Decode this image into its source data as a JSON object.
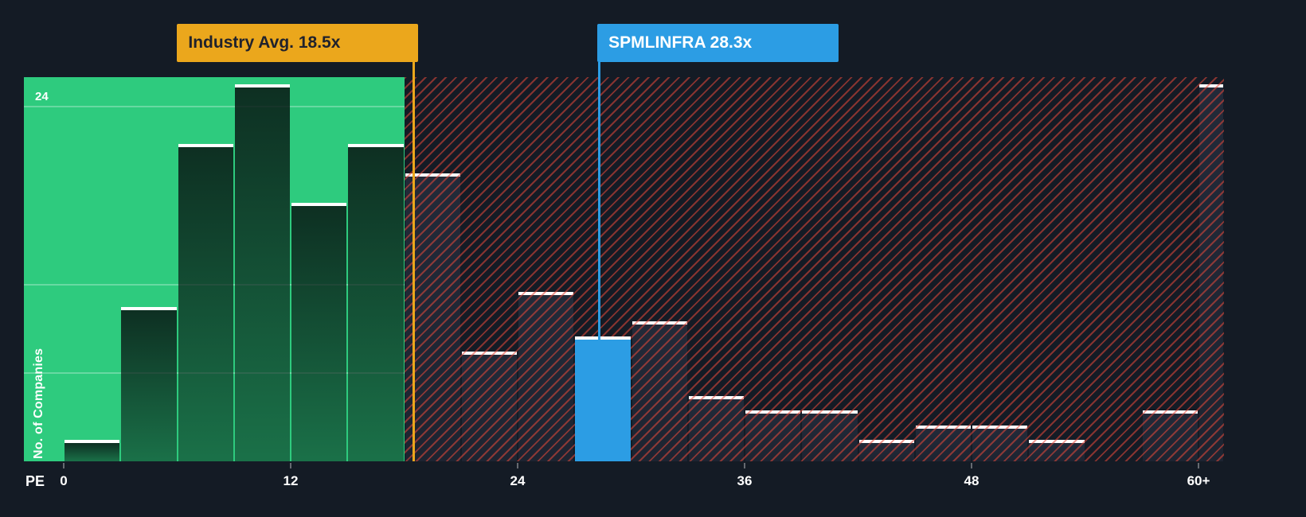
{
  "chart_data": {
    "type": "bar",
    "title": "",
    "xlabel": "PE",
    "ylabel": "No. of Companies",
    "y_tick": "24",
    "y_gridlines": [
      6,
      12,
      24
    ],
    "ylim": [
      0,
      26
    ],
    "bucket_size": 3,
    "x_ticks": [
      {
        "value": 0,
        "label": "0"
      },
      {
        "value": 12,
        "label": "12"
      },
      {
        "value": 24,
        "label": "24"
      },
      {
        "value": 36,
        "label": "36"
      },
      {
        "value": 48,
        "label": "48"
      },
      {
        "value": 60,
        "label": "60+"
      }
    ],
    "buckets": [
      {
        "x": 0,
        "label": "0-3",
        "count": 1
      },
      {
        "x": 3,
        "label": "3-6",
        "count": 10
      },
      {
        "x": 6,
        "label": "6-9",
        "count": 21
      },
      {
        "x": 9,
        "label": "9-12",
        "count": 25
      },
      {
        "x": 12,
        "label": "12-15",
        "count": 17
      },
      {
        "x": 15,
        "label": "15-18",
        "count": 21
      },
      {
        "x": 18,
        "label": "18-21",
        "count": 19
      },
      {
        "x": 21,
        "label": "21-24",
        "count": 7
      },
      {
        "x": 24,
        "label": "24-27",
        "count": 11
      },
      {
        "x": 27,
        "label": "27-30",
        "count": 8,
        "highlight": true
      },
      {
        "x": 30,
        "label": "30-33",
        "count": 9
      },
      {
        "x": 33,
        "label": "33-36",
        "count": 4
      },
      {
        "x": 36,
        "label": "36-39",
        "count": 3
      },
      {
        "x": 39,
        "label": "39-42",
        "count": 3
      },
      {
        "x": 42,
        "label": "42-45",
        "count": 1
      },
      {
        "x": 45,
        "label": "45-48",
        "count": 2
      },
      {
        "x": 48,
        "label": "48-51",
        "count": 2
      },
      {
        "x": 51,
        "label": "51-54",
        "count": 1
      },
      {
        "x": 54,
        "label": "54-57",
        "count": 0
      },
      {
        "x": 57,
        "label": "57-60",
        "count": 3
      },
      {
        "x": 60,
        "label": "60+",
        "count": 25,
        "overflow": true
      }
    ],
    "industry_avg": {
      "label": "Industry Avg. 18.5x",
      "value": 18.5
    },
    "highlight": {
      "label": "SPMLINFRA 28.3x",
      "value": 28.3,
      "bucket_label": "27-30"
    },
    "colors": {
      "background": "#141b25",
      "below_avg_zone": "#2ecb7e",
      "hatch": "#e6493a",
      "highlight_bar": "#2c9de4",
      "industry_avg": "#eba71c",
      "industry_avg_text": "#20222c",
      "highlight_text": "#ffffff",
      "bar_cap": "#ffffff"
    }
  }
}
